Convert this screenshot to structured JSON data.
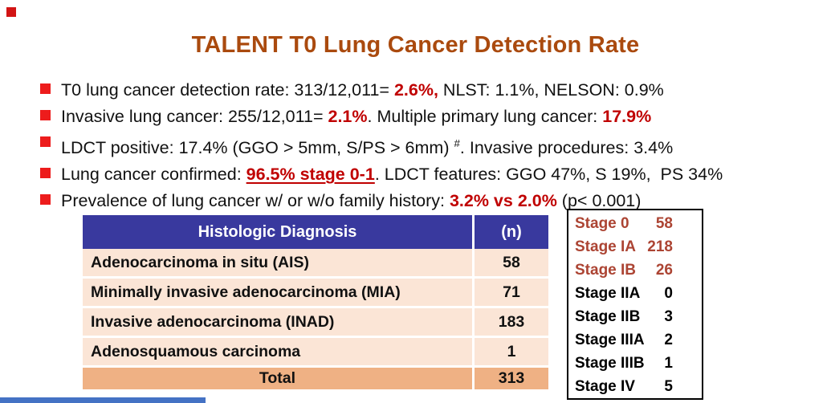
{
  "title": "TALENT T0 Lung Cancer Detection Rate",
  "colors": {
    "title_text": "#AA4A0E",
    "emphasis_red": "#C00000",
    "bullet_square": "#ED1C1C",
    "table_header_bg": "#39399E",
    "table_row_bg": "#FBE5D6",
    "table_total_bg": "#EFB184",
    "stage_highlight_text": "#AC4433",
    "bottom_bar": "#4472C4"
  },
  "bullets": [
    {
      "segments": [
        {
          "t": "T0 lung cancer detection rate: 313/12,011= ",
          "s": "n"
        },
        {
          "t": "2.6%,",
          "s": "rb"
        },
        {
          "t": " NLST: 1.1%, NELSON: 0.9%",
          "s": "n"
        }
      ]
    },
    {
      "segments": [
        {
          "t": "Invasive lung cancer: 255/12,011= ",
          "s": "n"
        },
        {
          "t": "2.1%",
          "s": "rb"
        },
        {
          "t": ". Multiple primary lung cancer: ",
          "s": "n"
        },
        {
          "t": "17.9%",
          "s": "rb"
        }
      ]
    },
    {
      "segments": [
        {
          "t": "LDCT positive: 17.4% (GGO > 5mm, S/PS > 6mm) ",
          "s": "n"
        },
        {
          "t": "#",
          "s": "sup"
        },
        {
          "t": ". Invasive procedures: 3.4%",
          "s": "n"
        }
      ]
    },
    {
      "segments": [
        {
          "t": "Lung cancer confirmed: ",
          "s": "n"
        },
        {
          "t": "96.5% stage 0-1",
          "s": "rbu"
        },
        {
          "t": ". LDCT features: GGO 47%, S 19%,  PS 34%",
          "s": "n"
        }
      ]
    },
    {
      "segments": [
        {
          "t": "Prevalence of lung cancer w/ or w/o family history: ",
          "s": "n"
        },
        {
          "t": "3.2% vs 2.0%",
          "s": "rb"
        },
        {
          "t": " (p< 0.001)",
          "s": "n"
        }
      ]
    }
  ],
  "table": {
    "header": [
      "Histologic Diagnosis",
      "(n)"
    ],
    "rows": [
      [
        "Adenocarcinoma in situ (AIS)",
        "58"
      ],
      [
        "Minimally invasive adenocarcinoma (MIA)",
        "71"
      ],
      [
        "Invasive adenocarcinoma (INAD)",
        "183"
      ],
      [
        "Adenosquamous carcinoma",
        "1"
      ]
    ],
    "total": [
      "Total",
      "313"
    ]
  },
  "stages": [
    {
      "label": "Stage 0",
      "value": "58",
      "highlight": true
    },
    {
      "label": "Stage IA",
      "value": "218",
      "highlight": true
    },
    {
      "label": "Stage IB",
      "value": "26",
      "highlight": true
    },
    {
      "label": "Stage IIA",
      "value": "0",
      "highlight": false
    },
    {
      "label": "Stage IIB",
      "value": "3",
      "highlight": false
    },
    {
      "label": "Stage IIIA",
      "value": "2",
      "highlight": false
    },
    {
      "label": "Stage IIIB",
      "value": "1",
      "highlight": false
    },
    {
      "label": "Stage IV",
      "value": "5",
      "highlight": false
    }
  ]
}
